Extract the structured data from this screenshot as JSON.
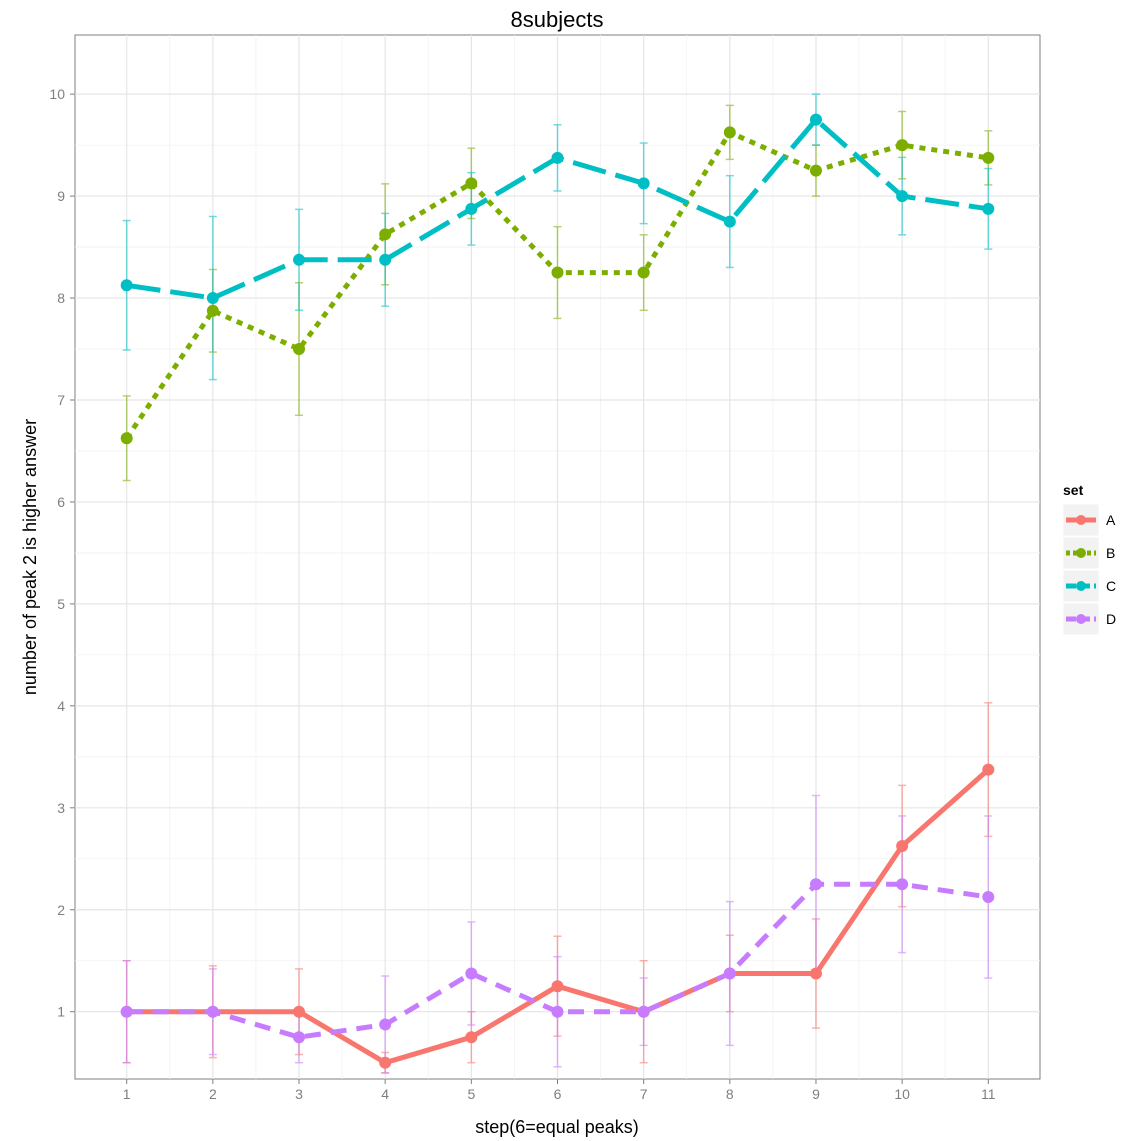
{
  "chart_data": {
    "type": "line",
    "title": "8subjects",
    "xlabel": "step(6=equal peaks)",
    "ylabel": "number of peak 2 is higher answer",
    "x": [
      1,
      2,
      3,
      4,
      5,
      6,
      7,
      8,
      9,
      10,
      11
    ],
    "xlim": [
      0.4,
      11.6
    ],
    "ylim": [
      0.34,
      10.58
    ],
    "yticks": [
      1,
      2,
      3,
      4,
      5,
      6,
      7,
      8,
      9,
      10
    ],
    "grid": true,
    "legend": {
      "title": "set",
      "position": "right"
    },
    "series": [
      {
        "name": "A",
        "color": "#F8766D",
        "linetype": "solid",
        "values": [
          1,
          1,
          1,
          0.5,
          0.75,
          1.25,
          1,
          1.375,
          1.375,
          2.625,
          3.375
        ],
        "lower": [
          0.5,
          0.55,
          0.58,
          0.4,
          0.5,
          0.76,
          0.5,
          1.0,
          0.84,
          2.03,
          2.72
        ],
        "upper": [
          1.5,
          1.45,
          1.42,
          0.6,
          1.0,
          1.74,
          1.5,
          1.75,
          1.91,
          3.22,
          4.03
        ]
      },
      {
        "name": "B",
        "color": "#7CAE00",
        "linetype": "dotted",
        "values": [
          6.625,
          7.875,
          7.5,
          8.625,
          9.125,
          8.25,
          8.25,
          9.625,
          9.25,
          9.5,
          9.375
        ],
        "lower": [
          6.21,
          7.47,
          6.85,
          8.13,
          8.78,
          7.8,
          7.88,
          9.36,
          9.0,
          9.17,
          9.11
        ],
        "upper": [
          7.04,
          8.28,
          8.15,
          9.12,
          9.47,
          8.7,
          8.62,
          9.89,
          9.5,
          9.83,
          9.64
        ]
      },
      {
        "name": "C",
        "color": "#00BFC4",
        "linetype": "longdash",
        "values": [
          8.125,
          8,
          8.375,
          8.375,
          8.875,
          9.375,
          9.125,
          8.75,
          9.75,
          9,
          8.875
        ],
        "lower": [
          7.49,
          7.2,
          7.88,
          7.92,
          8.52,
          9.05,
          8.73,
          8.3,
          9.5,
          8.62,
          8.48
        ],
        "upper": [
          8.76,
          8.8,
          8.87,
          8.83,
          9.23,
          9.7,
          9.52,
          9.2,
          10.0,
          9.38,
          9.27
        ]
      },
      {
        "name": "D",
        "color": "#C77CFF",
        "linetype": "dashed",
        "values": [
          1,
          1,
          0.75,
          0.875,
          1.375,
          1,
          1,
          1.375,
          2.25,
          2.25,
          2.125
        ],
        "lower": [
          0.5,
          0.58,
          0.5,
          0.4,
          0.87,
          0.46,
          0.67,
          0.67,
          1.38,
          1.58,
          1.33
        ],
        "upper": [
          1.5,
          1.42,
          1.0,
          1.35,
          1.88,
          1.54,
          1.33,
          2.08,
          3.12,
          2.92,
          2.92
        ]
      }
    ]
  }
}
